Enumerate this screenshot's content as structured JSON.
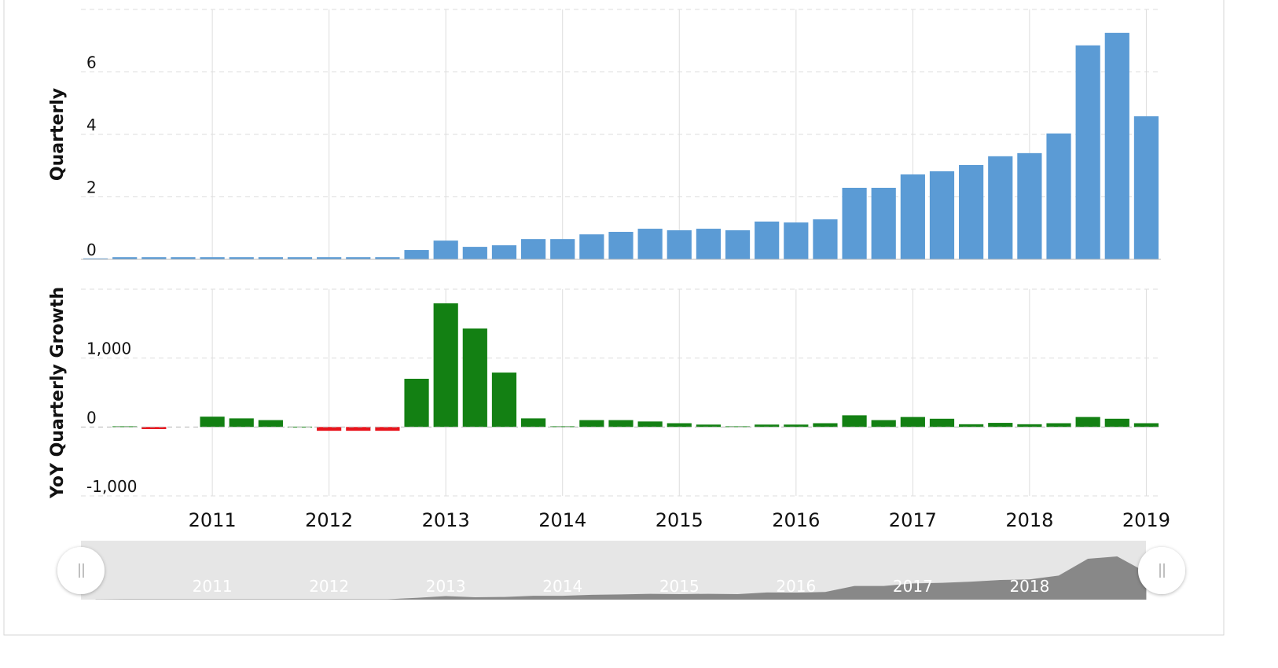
{
  "chart_data": [
    {
      "type": "bar",
      "y_label": "Quarterly",
      "x": [
        2010,
        2010.25,
        2010.5,
        2010.75,
        2011,
        2011.25,
        2011.5,
        2011.75,
        2012,
        2012.25,
        2012.5,
        2012.75,
        2013,
        2013.25,
        2013.5,
        2013.75,
        2014,
        2014.25,
        2014.5,
        2014.75,
        2015,
        2015.25,
        2015.5,
        2015.75,
        2016,
        2016.25,
        2016.5,
        2016.75,
        2017,
        2017.25,
        2017.5,
        2017.75,
        2018,
        2018.25,
        2018.5,
        2018.75,
        2019
      ],
      "values": [
        0.03,
        0.07,
        0.07,
        0.07,
        0.07,
        0.07,
        0.07,
        0.07,
        0.07,
        0.07,
        0.07,
        0.3,
        0.6,
        0.4,
        0.45,
        0.65,
        0.65,
        0.8,
        0.88,
        0.98,
        0.93,
        0.98,
        0.93,
        1.21,
        1.18,
        1.28,
        2.29,
        2.29,
        2.72,
        2.82,
        3.02,
        3.3,
        3.4,
        4.03,
        6.85,
        7.25,
        4.58
      ],
      "color": "#5b9bd5",
      "xlim": [
        2009.875,
        2019.125
      ],
      "xticks": [
        2011,
        2012,
        2013,
        2014,
        2015,
        2016,
        2017,
        2018,
        2019
      ],
      "ylim": [
        0,
        8
      ],
      "yticks": [
        0,
        2,
        4,
        6
      ],
      "grid": true
    },
    {
      "type": "bar",
      "y_label": "YoY Quarterly Growth",
      "x": [
        2010,
        2010.25,
        2010.5,
        2010.75,
        2011,
        2011.25,
        2011.5,
        2011.75,
        2012,
        2012.25,
        2012.5,
        2012.75,
        2013,
        2013.25,
        2013.5,
        2013.75,
        2014,
        2014.25,
        2014.5,
        2014.75,
        2015,
        2015.25,
        2015.5,
        2015.75,
        2016,
        2016.25,
        2016.5,
        2016.75,
        2017,
        2017.25,
        2017.5,
        2017.75,
        2018,
        2018.25,
        2018.5,
        2018.75,
        2019
      ],
      "values": [
        null,
        10,
        -30,
        null,
        150,
        125,
        100,
        5,
        -55,
        -55,
        -55,
        700,
        1795,
        1430,
        790,
        125,
        10,
        100,
        100,
        80,
        55,
        35,
        10,
        35,
        35,
        55,
        170,
        100,
        145,
        120,
        40,
        60,
        40,
        55,
        145,
        120,
        55
      ],
      "color": "#138013",
      "negative_color": "#e8141c",
      "xlim": [
        2009.875,
        2019.125
      ],
      "xticks": [
        2011,
        2012,
        2013,
        2014,
        2015,
        2016,
        2017,
        2018,
        2019
      ],
      "ylim": [
        -1000,
        2000
      ],
      "yticks": [
        {
          "value": -1000,
          "label": "-1,000"
        },
        0,
        {
          "value": 1000,
          "label": "1,000"
        }
      ],
      "grid": true
    }
  ]
}
